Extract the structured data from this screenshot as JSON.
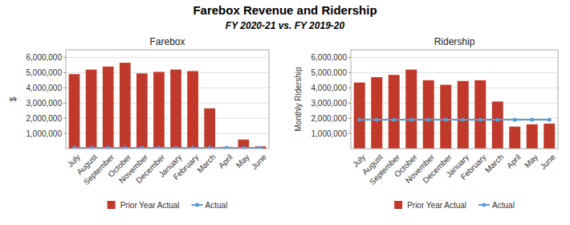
{
  "title": "Farebox Revenue and Ridership",
  "subtitle": "FY 2020-21 vs. FY 2019-20",
  "chart_data": [
    {
      "type": "bar",
      "title": "Farebox",
      "y_label": "$",
      "categories": [
        "July",
        "August",
        "September",
        "October",
        "November",
        "December",
        "January",
        "February",
        "March",
        "April",
        "May",
        "June"
      ],
      "series": [
        {
          "name": "Prior Year Actual",
          "type": "bar",
          "color": "#c0392b",
          "values": [
            4900000,
            5200000,
            5400000,
            5650000,
            4950000,
            5050000,
            5200000,
            5100000,
            2650000,
            120000,
            600000,
            150000
          ]
        },
        {
          "name": "Actual",
          "type": "line",
          "color": "#5b9bd5",
          "marker": "circle",
          "values": [
            50000,
            50000,
            50000,
            50000,
            50000,
            50000,
            50000,
            50000,
            50000,
            50000,
            50000,
            50000
          ]
        }
      ],
      "ylim": [
        0,
        6500000
      ],
      "yticks": [
        {
          "value": 1000000,
          "label": "1,000,000"
        },
        {
          "value": 2000000,
          "label": "2,000,000"
        },
        {
          "value": 3000000,
          "label": "3,000,000"
        },
        {
          "value": 4000000,
          "label": "4,000,000"
        },
        {
          "value": 5000000,
          "label": "5,000,000"
        },
        {
          "value": 6000000,
          "label": "6,000,000"
        }
      ],
      "grid": true,
      "legend": "bottom"
    },
    {
      "type": "bar",
      "title": "Ridership",
      "y_label": "Monthly Ridership",
      "categories": [
        "July",
        "August",
        "September",
        "October",
        "November",
        "December",
        "January",
        "February",
        "March",
        "April",
        "May",
        "June"
      ],
      "series": [
        {
          "name": "Prior Year Actual",
          "type": "bar",
          "color": "#c0392b",
          "values": [
            4350000,
            4700000,
            4850000,
            5200000,
            4500000,
            4200000,
            4450000,
            4500000,
            3100000,
            1450000,
            1600000,
            1650000
          ]
        },
        {
          "name": "Actual",
          "type": "line",
          "color": "#5b9bd5",
          "marker": "circle",
          "values": [
            1900000,
            1900000,
            1900000,
            1900000,
            1900000,
            1900000,
            1900000,
            1900000,
            1900000,
            1900000,
            1900000,
            1900000
          ]
        }
      ],
      "ylim": [
        0,
        6500000
      ],
      "yticks": [
        {
          "value": 1000000,
          "label": "1,000,000"
        },
        {
          "value": 2000000,
          "label": "2,000,000"
        },
        {
          "value": 3000000,
          "label": "3,000,000"
        },
        {
          "value": 4000000,
          "label": "4,000,000"
        },
        {
          "value": 5000000,
          "label": "5,000,000"
        },
        {
          "value": 6000000,
          "label": "6,000,000"
        }
      ],
      "grid": true,
      "legend": "bottom"
    }
  ]
}
